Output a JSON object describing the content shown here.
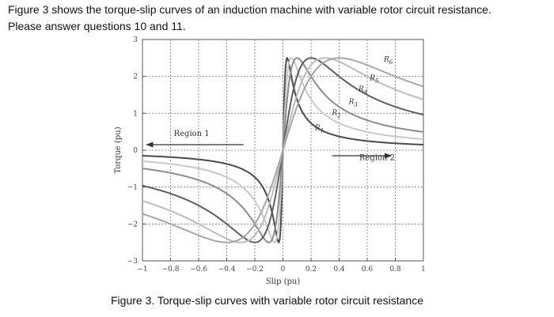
{
  "text": {
    "intro_line1": "Figure 3 shows the torque-slip curves of an induction machine with variable rotor circuit resistance.",
    "intro_line2": "Please answer questions 10 and 11.",
    "caption": "Figure 3. Torque-slip curves with variable rotor circuit resistance"
  },
  "chart_data": {
    "type": "line",
    "xlabel": "Slip (pu)",
    "ylabel": "Torque (pu)",
    "xlim": [
      -1,
      1
    ],
    "ylim": [
      -3,
      3
    ],
    "x_ticks": [
      -1,
      -0.8,
      -0.6,
      -0.4,
      -0.2,
      0,
      0.2,
      0.4,
      0.6,
      0.8,
      1
    ],
    "x_tick_labels": [
      "−1",
      "−0.8",
      "−0.6",
      "−0.4",
      "−0.2",
      "0",
      "0.2",
      "0.4",
      "0.6",
      "0.8",
      "1"
    ],
    "y_ticks": [
      -3,
      -2,
      -1,
      0,
      1,
      2,
      3
    ],
    "y_tick_labels": [
      "−3",
      "−2",
      "−1",
      "0",
      "1",
      "2",
      "3"
    ],
    "grid": true,
    "peak_torque": 2.5,
    "series": [
      {
        "name": "R1",
        "color": "#4a4a4a",
        "s_max": 0.03
      },
      {
        "name": "R2",
        "color": "#c8c8c8",
        "s_max": 0.06
      },
      {
        "name": "R3",
        "color": "#8c8c8c",
        "s_max": 0.1
      },
      {
        "name": "R4",
        "color": "#5e5e5e",
        "s_max": 0.2
      },
      {
        "name": "R5",
        "color": "#bcbcbc",
        "s_max": 0.3
      },
      {
        "name": "R6",
        "color": "#a6a6a6",
        "s_max": 0.4
      }
    ],
    "annotations": [
      {
        "text": "Region 1",
        "x": -0.65,
        "y": 0.3,
        "arrow": "left"
      },
      {
        "text": "Region 2",
        "x": 0.67,
        "y": -0.35,
        "arrow": "right"
      }
    ],
    "curve_labels": [
      {
        "text": "R",
        "sub": "1",
        "x": 0.26,
        "y": 0.55
      },
      {
        "text": "R",
        "sub": "2",
        "x": 0.38,
        "y": 0.95
      },
      {
        "text": "R",
        "sub": "3",
        "x": 0.5,
        "y": 1.25
      },
      {
        "text": "R",
        "sub": "4",
        "x": 0.57,
        "y": 1.6
      },
      {
        "text": "R",
        "sub": "5",
        "x": 0.65,
        "y": 1.9
      },
      {
        "text": "R",
        "sub": "6",
        "x": 0.75,
        "y": 2.4
      }
    ]
  }
}
